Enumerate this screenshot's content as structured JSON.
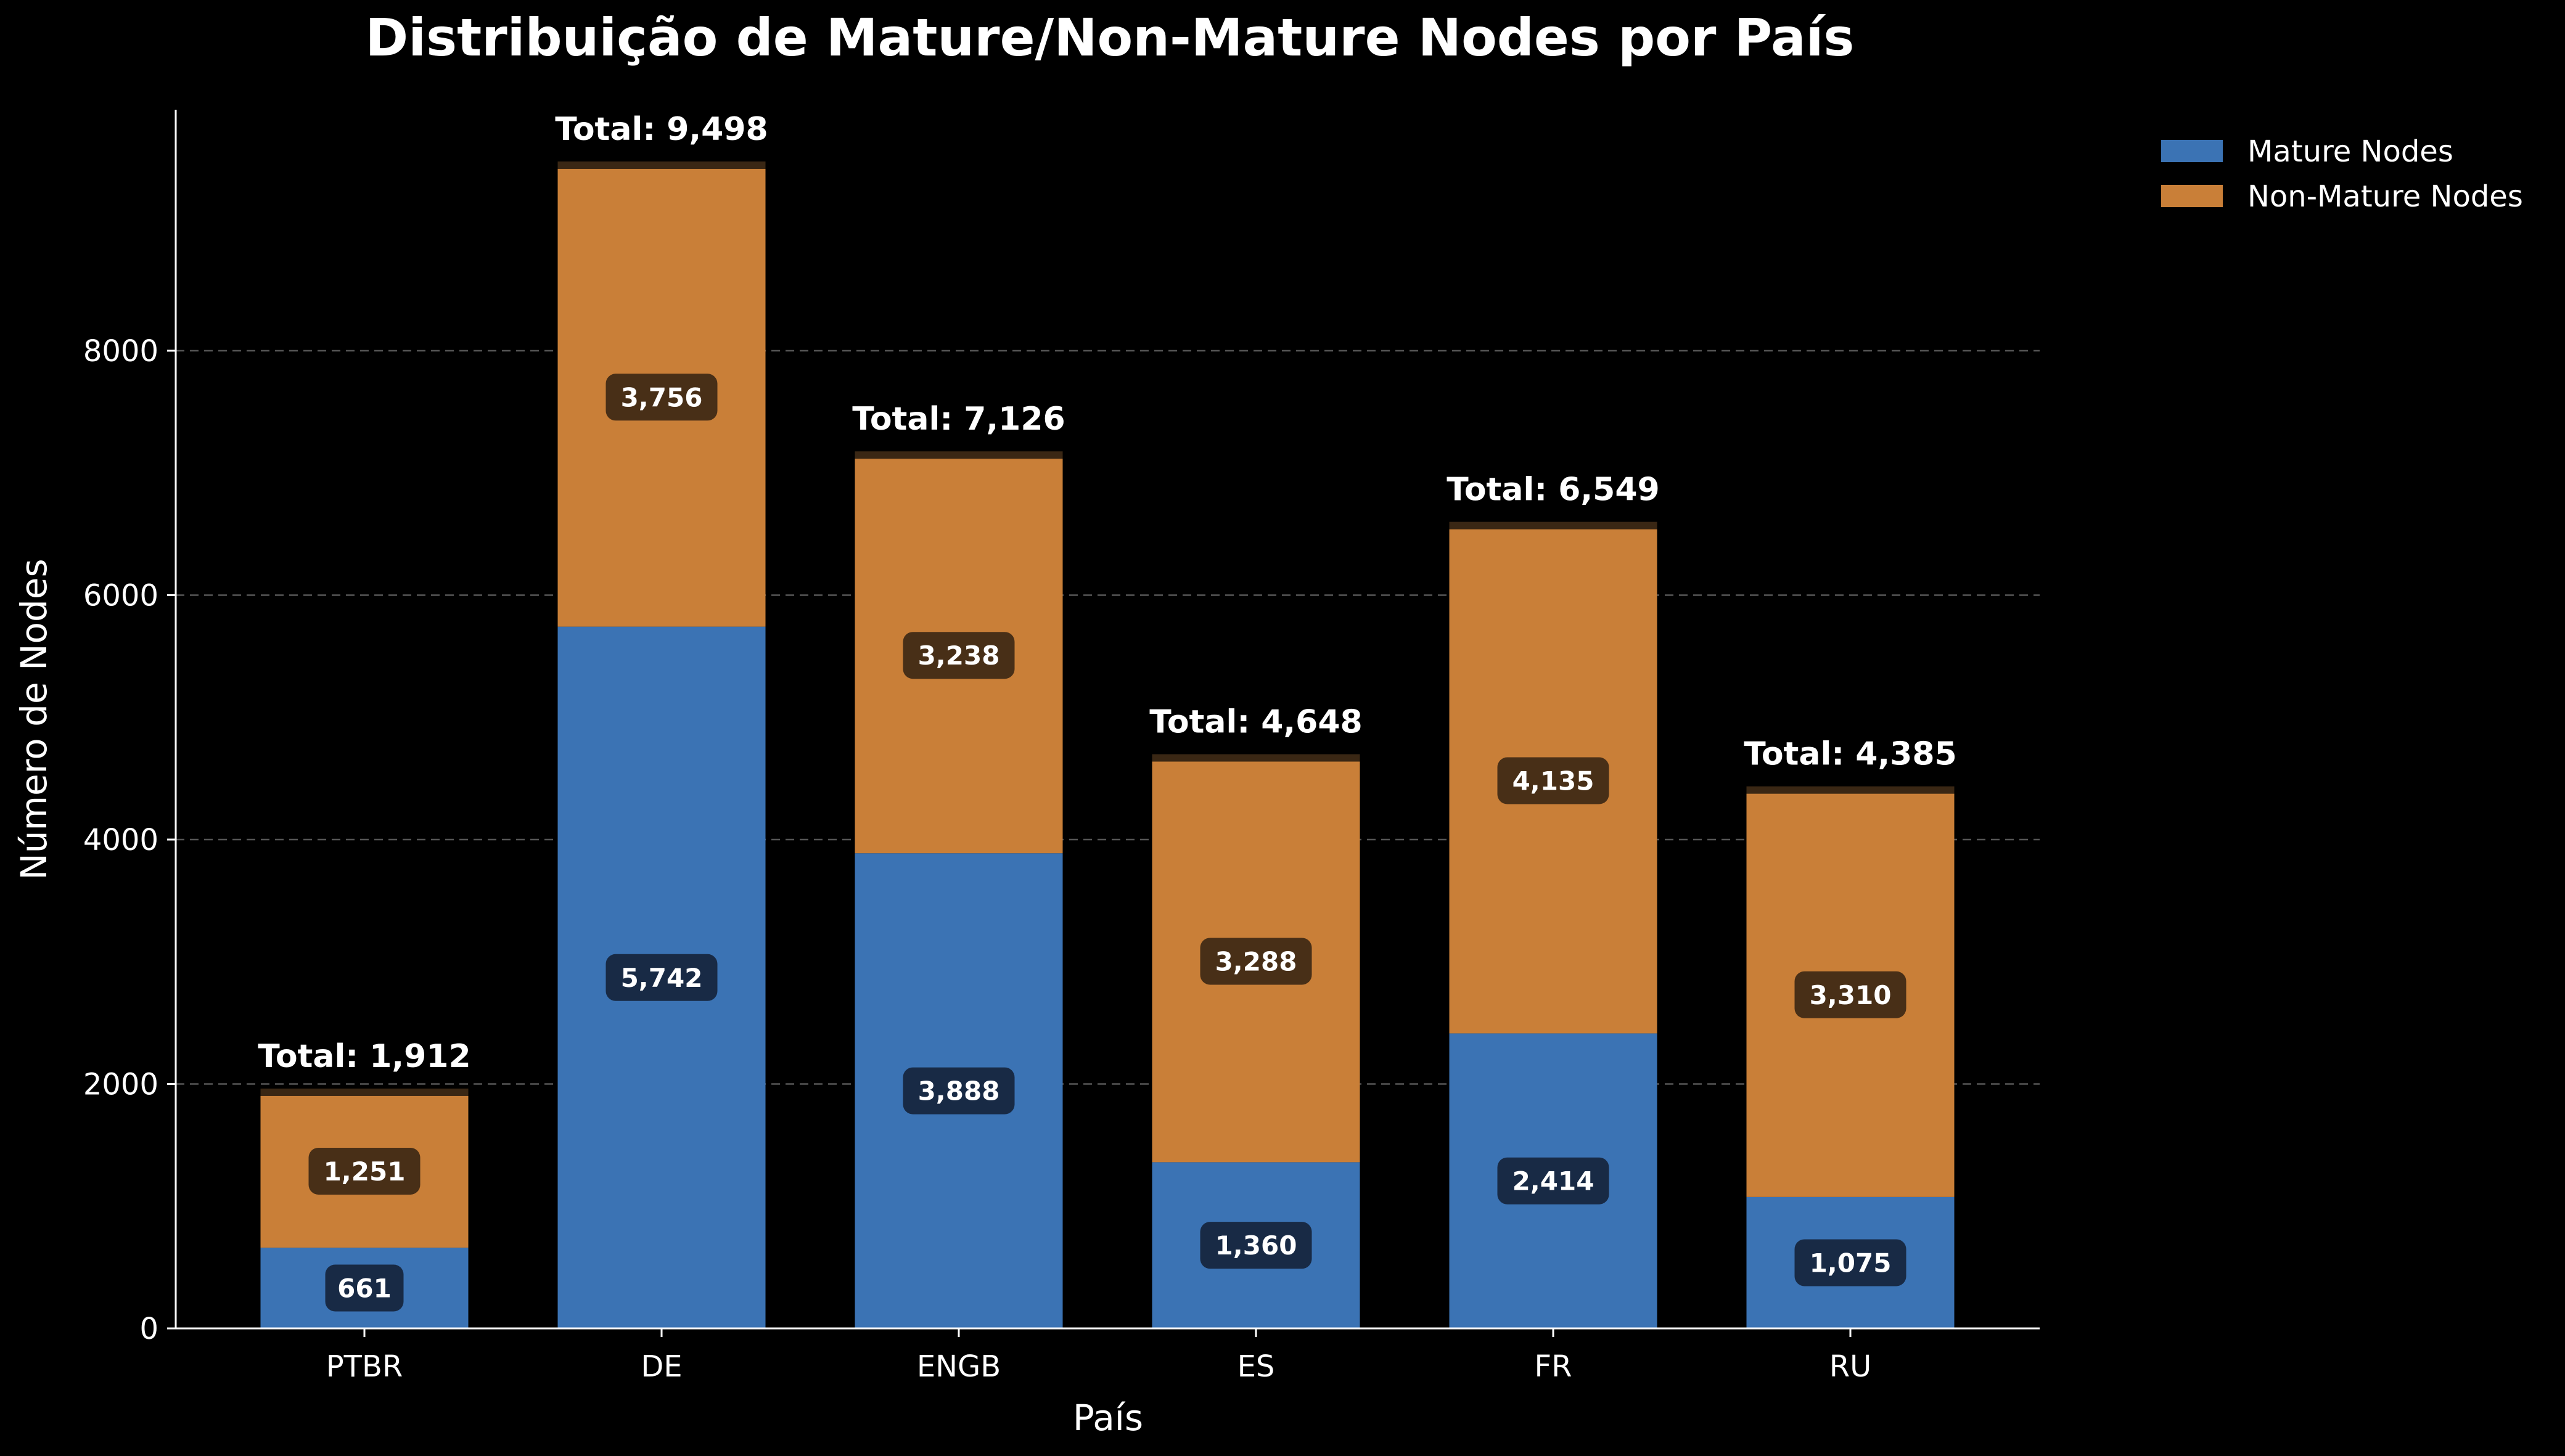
{
  "chart_data": {
    "type": "bar",
    "stacked": true,
    "title": "Distribuição de Mature/Non-Mature Nodes por País",
    "xlabel": "País",
    "ylabel": "Número de Nodes",
    "categories": [
      "PTBR",
      "DE",
      "ENGB",
      "ES",
      "FR",
      "RU"
    ],
    "series": [
      {
        "name": "Mature Nodes",
        "color": "#3b73b4",
        "label_bg": "#152238",
        "values": [
          661,
          5742,
          3888,
          1360,
          2414,
          1075
        ],
        "labels": [
          "661",
          "5,742",
          "3,888",
          "1,360",
          "2,414",
          "1,075"
        ]
      },
      {
        "name": "Non-Mature Nodes",
        "color": "#c97f38",
        "label_bg": "#3a2714",
        "values": [
          1251,
          3756,
          3238,
          3288,
          4135,
          3310
        ],
        "labels": [
          "1,251",
          "3,756",
          "3,238",
          "3,288",
          "4,135",
          "3,310"
        ]
      }
    ],
    "totals": [
      1912,
      9498,
      7126,
      4648,
      6549,
      4385
    ],
    "total_labels": [
      "Total: 1,912",
      "Total: 9,498",
      "Total: 7,126",
      "Total: 4,648",
      "Total: 6,549",
      "Total: 4,385"
    ],
    "yticks": [
      0,
      2000,
      4000,
      6000,
      8000
    ],
    "ylim": [
      0,
      9972
    ],
    "grid": true,
    "legend_position": "top-right",
    "background": "#000000"
  }
}
